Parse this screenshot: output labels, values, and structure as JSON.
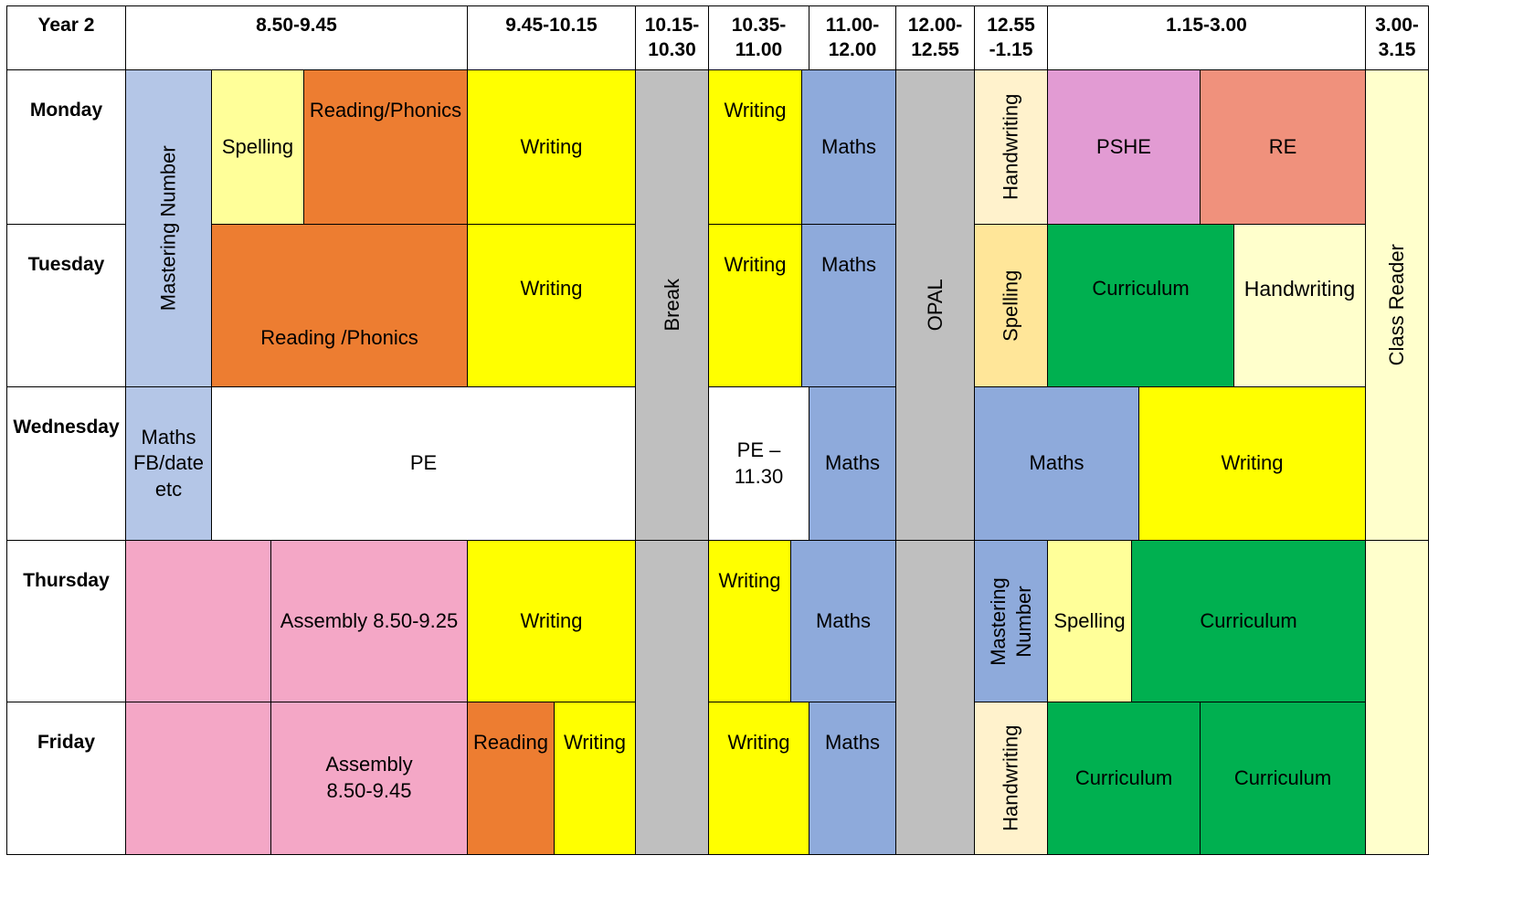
{
  "header": {
    "corner": "Year 2",
    "slots": [
      "8.50-9.45",
      "9.45-10.15",
      "10.15-\n10.30",
      "10.35-\n11.00",
      "11.00-\n12.00",
      "12.00-\n12.55",
      "12.55\n-1.15",
      "1.15-3.00",
      "3.00-\n3.15"
    ]
  },
  "days": [
    "Monday",
    "Tuesday",
    "Wednesday",
    "Thursday",
    "Friday"
  ],
  "shared": {
    "mastering_number": "Mastering Number",
    "break": "Break",
    "opal": "OPAL",
    "class_reader": "Class Reader"
  },
  "monday": {
    "spelling": "Spelling",
    "reading_phonics": "Reading/Phonics",
    "writing": "Writing",
    "writing2": "Writing",
    "maths": "Maths",
    "handwriting": "Handwriting",
    "pshe": "PSHE",
    "re": "RE"
  },
  "tuesday": {
    "reading_phonics": "Reading /Phonics",
    "writing": "Writing",
    "writing2": "Writing",
    "maths": "Maths",
    "spelling": "Spelling",
    "curriculum": "Curriculum",
    "handwriting": "Handwriting"
  },
  "wednesday": {
    "maths_fb": "Maths\nFB/date\netc",
    "pe": "PE",
    "pe_end": "PE –\n11.30",
    "maths": "Maths",
    "maths2": "Maths",
    "writing": "Writing"
  },
  "thursday": {
    "blank": "",
    "assembly": "Assembly 8.50-9.25",
    "writing": "Writing",
    "writing2": "Writing",
    "maths": "Maths",
    "mastering_number": "Mastering\nNumber",
    "spelling": "Spelling",
    "curriculum": "Curriculum"
  },
  "friday": {
    "blank": "",
    "assembly": "Assembly\n8.50-9.45",
    "reading": "Reading",
    "writing": "Writing",
    "writing2": "Writing",
    "maths": "Maths",
    "handwriting": "Handwriting",
    "curriculum1": "Curriculum",
    "curriculum2": "Curriculum"
  },
  "colors": {
    "light_blue": "#b4c6e7",
    "blue": "#8eaadb",
    "light_yellow": "#ffff99",
    "yellow": "#ffff00",
    "orange": "#ed7d31",
    "grey": "#bfbfbf",
    "cream": "#fff2cc",
    "pale_yellow": "#ffffcc",
    "gold": "#ffe699",
    "pink": "#f4a7c6",
    "magenta": "#e29bd3",
    "salmon": "#f0917c",
    "green": "#00b050"
  }
}
